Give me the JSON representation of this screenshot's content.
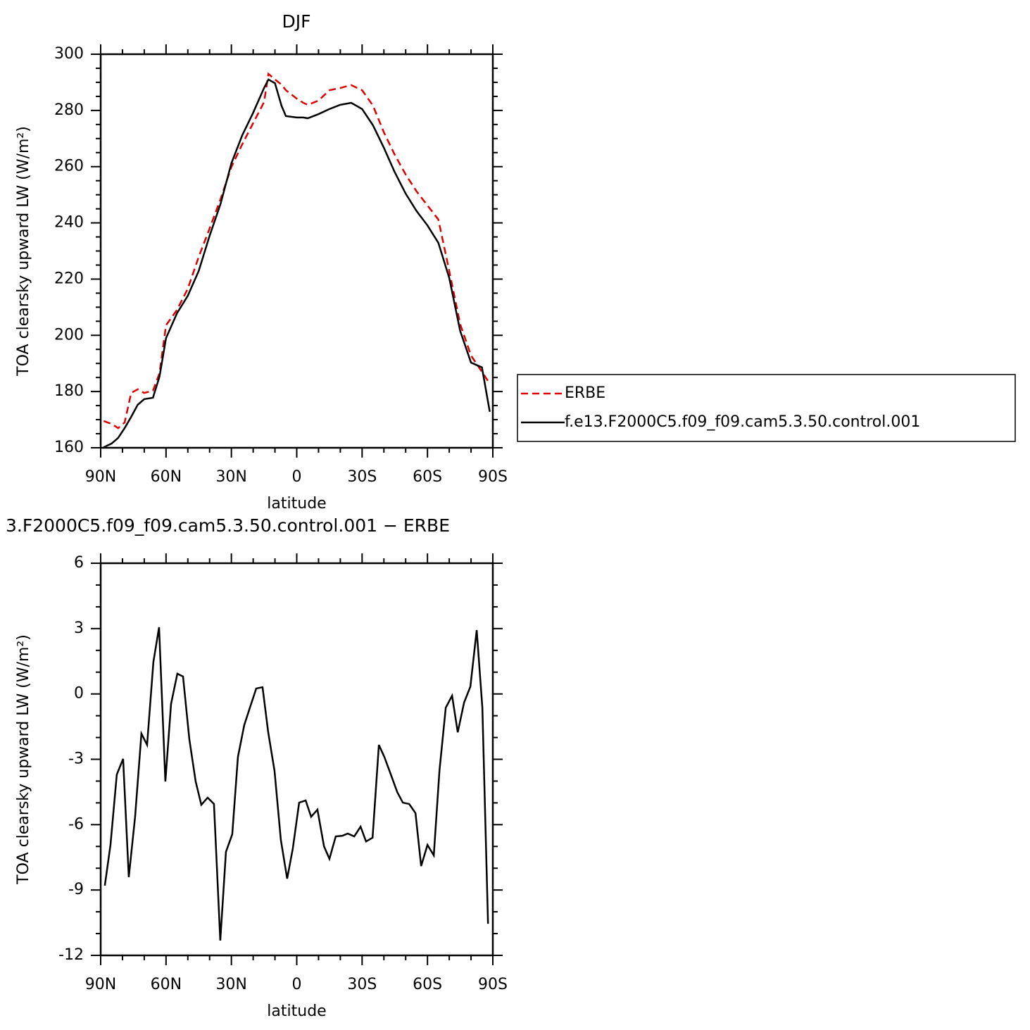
{
  "chart_data": [
    {
      "type": "line",
      "title": "DJF",
      "xlabel": "latitude",
      "ylabel": "TOA clearsky upward LW (W/m²)",
      "x": [
        88.6,
        85,
        82,
        79,
        76,
        73,
        70,
        66,
        63,
        60,
        55,
        50,
        45,
        40,
        35,
        30,
        25,
        20,
        15,
        13,
        10,
        7,
        5,
        0,
        -3,
        -5,
        -10,
        -15,
        -20,
        -25,
        -30,
        -35,
        -40,
        -45,
        -50,
        -55,
        -60,
        -65,
        -70,
        -75,
        -80,
        -85,
        -88.6
      ],
      "series": [
        {
          "name": "ERBE",
          "color": "#e00000",
          "dashed": true,
          "values": [
            169.5,
            168.5,
            167,
            169,
            179.5,
            180.8,
            179.5,
            180.3,
            186.5,
            203.6,
            209,
            216.6,
            227.9,
            238,
            248.4,
            259.9,
            268,
            275.5,
            283,
            293,
            291,
            289.2,
            287.2,
            284.2,
            282.7,
            282,
            283.5,
            287.2,
            288,
            289,
            287.2,
            281.7,
            272.2,
            264.2,
            257.2,
            251.2,
            246.2,
            241.2,
            222.9,
            204,
            192.8,
            187,
            182.8
          ]
        },
        {
          "name": "f.e13.F2000C5.f09_f09.cam5.3.50.control.001",
          "color": "#000000",
          "dashed": false,
          "values": [
            160.2,
            161.5,
            163.5,
            167,
            171,
            175.3,
            177.3,
            177.8,
            185.3,
            199,
            207.8,
            214.1,
            222.9,
            235.4,
            246.7,
            261.2,
            271.2,
            279.2,
            288,
            291,
            289.7,
            281.7,
            278,
            277.5,
            277.5,
            277.2,
            278.7,
            280.5,
            282,
            282.7,
            280.5,
            274.7,
            266.7,
            258,
            250.4,
            244.2,
            239.1,
            232.9,
            220.4,
            201.6,
            190.3,
            188.6,
            172.8
          ]
        }
      ],
      "xlim": [
        90,
        -90
      ],
      "xticks": [
        {
          "value": 90,
          "label": "90N"
        },
        {
          "value": 60,
          "label": "60N"
        },
        {
          "value": 30,
          "label": "30N"
        },
        0,
        {
          "value": -30,
          "label": "30S"
        },
        {
          "value": -60,
          "label": "60S"
        },
        {
          "value": -90,
          "label": "90S"
        }
      ],
      "ylim": [
        160,
        300
      ],
      "yticks": [
        160,
        180,
        200,
        220,
        240,
        260,
        280,
        300
      ],
      "legend": "right"
    },
    {
      "type": "line",
      "title": "3.F2000C5.f09_f09.cam5.3.50.control.001 − ERBE",
      "xlabel": "latitude",
      "ylabel": "TOA clearsky upward LW (W/m²)",
      "x": [
        88.1,
        85.5,
        82.6,
        79.7,
        77.1,
        74.2,
        71.3,
        68.7,
        65.8,
        63.2,
        60.3,
        57.7,
        54.8,
        52.2,
        49.3,
        46.4,
        43.8,
        40.9,
        38.0,
        35.1,
        32.5,
        29.6,
        27.0,
        24.1,
        21.5,
        18.6,
        15.7,
        13.1,
        10.2,
        7.3,
        4.4,
        1.8,
        -1.1,
        -4.1,
        -6.6,
        -9.5,
        -12.5,
        -15.0,
        -17.9,
        -20.9,
        -23.4,
        -26.4,
        -29.3,
        -31.8,
        -34.8,
        -37.7,
        -40.2,
        -43.2,
        -46.1,
        -48.7,
        -51.6,
        -54.5,
        -57.1,
        -60.0,
        -62.9,
        -65.5,
        -68.4,
        -71.3,
        -73.9,
        -76.8,
        -79.7,
        -82.6,
        -85.2,
        -87.8
      ],
      "series": [
        {
          "color": "#000000",
          "dashed": false,
          "values": [
            -8.8,
            -6.93,
            -3.7,
            -2.98,
            -8.41,
            -5.64,
            -1.82,
            -2.34,
            1.47,
            3.06,
            -4.02,
            -0.46,
            0.93,
            0.8,
            -2.08,
            -4.02,
            -5.09,
            -4.76,
            -5.05,
            -11.32,
            -7.25,
            -6.44,
            -2.89,
            -1.43,
            -0.63,
            0.25,
            0.31,
            -1.76,
            -3.53,
            -6.7,
            -8.48,
            -7.09,
            -4.99,
            -4.89,
            -5.64,
            -5.31,
            -6.99,
            -7.57,
            -6.54,
            -6.51,
            -6.41,
            -6.54,
            -6.09,
            -6.77,
            -6.6,
            -2.34,
            -2.89,
            -3.7,
            -4.5,
            -4.99,
            -5.05,
            -5.47,
            -7.9,
            -6.93,
            -7.41,
            -3.53,
            -0.63,
            -0.08,
            -1.76,
            -0.4,
            0.34,
            2.93,
            -0.63,
            -10.55
          ]
        }
      ],
      "xlim": [
        90,
        -90
      ],
      "xticks": [
        {
          "value": 90,
          "label": "90N"
        },
        {
          "value": 60,
          "label": "60N"
        },
        {
          "value": 30,
          "label": "30N"
        },
        0,
        {
          "value": -30,
          "label": "30S"
        },
        {
          "value": -60,
          "label": "60S"
        },
        {
          "value": -90,
          "label": "90S"
        }
      ],
      "ylim": [
        -12,
        6
      ],
      "yticks": [
        -12,
        -9,
        -6,
        -3,
        0,
        3,
        6
      ]
    }
  ]
}
